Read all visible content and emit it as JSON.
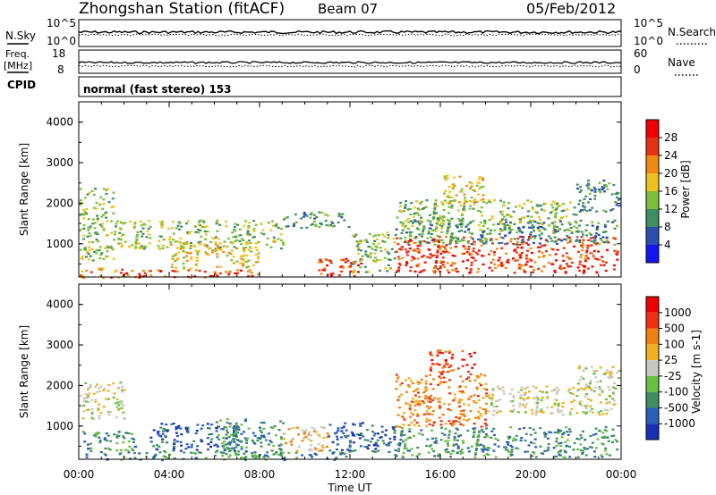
{
  "header": {
    "station": "Zhongshan Station (fitACF)",
    "beam": "Beam 07",
    "date": "05/Feb/2012"
  },
  "strips": {
    "nsky": {
      "label": "N.Sky",
      "tick_top": "10^5",
      "tick_bottom": "10^0"
    },
    "nsearch": {
      "label": "N.Search",
      "tick_top": "10^5",
      "tick_bottom": "10^0"
    },
    "freq": {
      "label_line1": "Freq.",
      "label_line2": "[MHz]",
      "tick_top": "18",
      "tick_bottom": "8"
    },
    "nave": {
      "label": "Nave",
      "tick_top": "60",
      "tick_bottom": "0"
    },
    "cpid": {
      "label": "CPID",
      "value": "normal (fast stereo) 153"
    }
  },
  "chart_data": [
    {
      "type": "heatmap",
      "name_text": "power-panel",
      "ylabel": "Slant Range [km]",
      "xlabel": "",
      "y_ticks": [
        "1000",
        "2000",
        "3000",
        "4000"
      ],
      "ylim": [
        180,
        4500
      ],
      "colorbar": {
        "label": "Power [dB]",
        "ticks": [
          "4",
          "8",
          "12",
          "16",
          "20",
          "24",
          "28"
        ],
        "colors": [
          "#1414f0",
          "#2a4fb0",
          "#3f8f62",
          "#7bbf3a",
          "#f0c020",
          "#f08a10",
          "#e83010",
          "#f00000"
        ]
      },
      "regions": [
        {
          "t": [
            0.0,
            2.0
          ],
          "r": [
            180,
            420
          ],
          "level": 5
        },
        {
          "t": [
            2.0,
            8.0
          ],
          "r": [
            180,
            380
          ],
          "level": 6
        },
        {
          "t": [
            0.0,
            1.5
          ],
          "r": [
            600,
            2400
          ],
          "level": 3
        },
        {
          "t": [
            1.5,
            9.0
          ],
          "r": [
            900,
            1600
          ],
          "level": 3
        },
        {
          "t": [
            4.0,
            8.0
          ],
          "r": [
            400,
            1100
          ],
          "level": 4
        },
        {
          "t": [
            9.0,
            12.0
          ],
          "r": [
            1400,
            1800
          ],
          "level": 2
        },
        {
          "t": [
            10.5,
            12.5
          ],
          "r": [
            200,
            700
          ],
          "level": 6
        },
        {
          "t": [
            12.0,
            14.0
          ],
          "r": [
            300,
            1300
          ],
          "level": 3
        },
        {
          "t": [
            14.0,
            23.8
          ],
          "r": [
            300,
            1200
          ],
          "level": 6
        },
        {
          "t": [
            14.0,
            22.0
          ],
          "r": [
            1300,
            2100
          ],
          "level": 3
        },
        {
          "t": [
            14.0,
            23.8
          ],
          "r": [
            1000,
            1600
          ],
          "level": 2
        },
        {
          "t": [
            16.0,
            18.0
          ],
          "r": [
            2000,
            2700
          ],
          "level": 4
        },
        {
          "t": [
            22.0,
            23.9
          ],
          "r": [
            1800,
            2600
          ],
          "level": 2
        }
      ]
    },
    {
      "type": "heatmap",
      "name_text": "velocity-panel",
      "ylabel": "Slant Range [km]",
      "xlabel": "Time UT",
      "x_ticks": [
        "00:00",
        "04:00",
        "08:00",
        "12:00",
        "16:00",
        "20:00",
        "00:00"
      ],
      "y_ticks": [
        "1000",
        "2000",
        "3000",
        "4000"
      ],
      "ylim": [
        180,
        4500
      ],
      "colorbar": {
        "label": "Velocity [m s-1]",
        "ticks": [
          "1000",
          "500",
          "100",
          "25",
          "-25",
          "-100",
          "-500",
          "-1000"
        ],
        "colors": [
          "#1a2fb8",
          "#2a5fb8",
          "#3f8f62",
          "#6ac040",
          "#c8c8c0",
          "#f0b020",
          "#f08010",
          "#f03010",
          "#f00000"
        ]
      },
      "regions": [
        {
          "t": [
            0.0,
            2.0
          ],
          "r": [
            1200,
            2100
          ],
          "level": 4
        },
        {
          "t": [
            0.0,
            12.0
          ],
          "r": [
            180,
            380
          ],
          "level": 2
        },
        {
          "t": [
            0.0,
            2.5
          ],
          "r": [
            400,
            900
          ],
          "level": 2
        },
        {
          "t": [
            3.0,
            7.0
          ],
          "r": [
            400,
            1100
          ],
          "level": 1
        },
        {
          "t": [
            6.0,
            9.0
          ],
          "r": [
            300,
            1200
          ],
          "level": 2
        },
        {
          "t": [
            9.0,
            11.0
          ],
          "r": [
            400,
            1000
          ],
          "level": 5
        },
        {
          "t": [
            11.0,
            14.0
          ],
          "r": [
            300,
            1100
          ],
          "level": 1
        },
        {
          "t": [
            14.0,
            18.0
          ],
          "r": [
            1000,
            2300
          ],
          "level": 6
        },
        {
          "t": [
            15.5,
            17.5
          ],
          "r": [
            2300,
            2900
          ],
          "level": 7
        },
        {
          "t": [
            14.0,
            23.8
          ],
          "r": [
            250,
            1000
          ],
          "level": 2
        },
        {
          "t": [
            18.0,
            23.8
          ],
          "r": [
            1300,
            2000
          ],
          "level": 4
        },
        {
          "t": [
            22.0,
            23.9
          ],
          "r": [
            1900,
            2500
          ],
          "level": 4
        }
      ]
    }
  ]
}
